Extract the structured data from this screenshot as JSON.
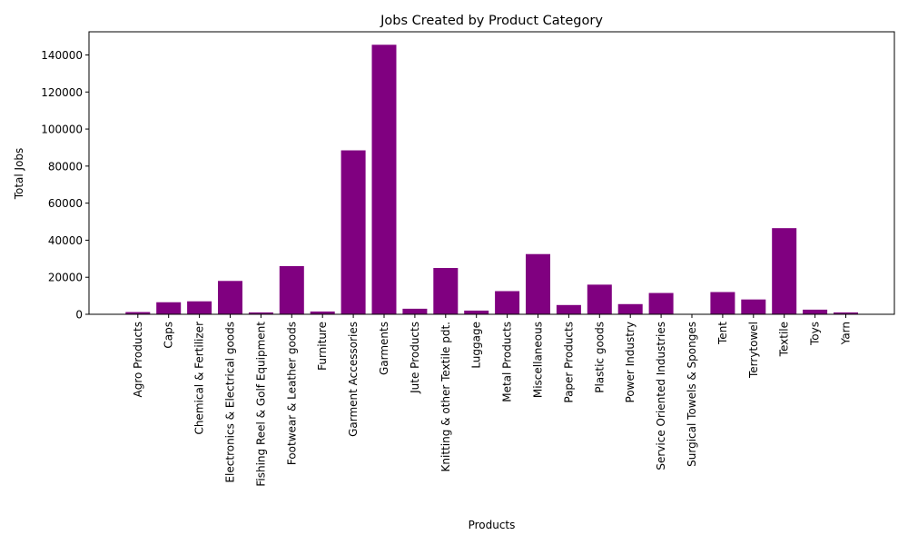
{
  "chart_data": {
    "type": "bar",
    "title": "Jobs Created by Product Category",
    "xlabel": "Products",
    "ylabel": "Total Jobs",
    "categories": [
      "Agro Products",
      "Caps",
      "Chemical & Fertilizer",
      "Electronics & Electrical goods",
      "Fishing Reel & Golf Equipment",
      "Footwear & Leather goods",
      "Furniture",
      "Garment Accessories",
      "Garments",
      "Jute Products",
      "Knitting & other Textile pdt.",
      "Luggage",
      "Metal Products",
      "Miscellaneous",
      "Paper Products",
      "Plastic goods",
      "Power Industry",
      "Service Oriented Industries",
      "Surgical Towels & Sponges",
      "Tent",
      "Terrytowel",
      "Textile",
      "Toys",
      "Yarn"
    ],
    "values": [
      1200,
      6500,
      7000,
      18000,
      1000,
      26000,
      1500,
      88500,
      145500,
      3000,
      25000,
      2000,
      12500,
      32500,
      5000,
      16000,
      5500,
      11500,
      200,
      12000,
      8000,
      46500,
      2500,
      1000
    ],
    "ylim": [
      0,
      152500
    ],
    "yticks": [
      0,
      20000,
      40000,
      60000,
      80000,
      100000,
      120000,
      140000
    ],
    "bar_color": "#800080",
    "grid": false,
    "legend": "none"
  }
}
